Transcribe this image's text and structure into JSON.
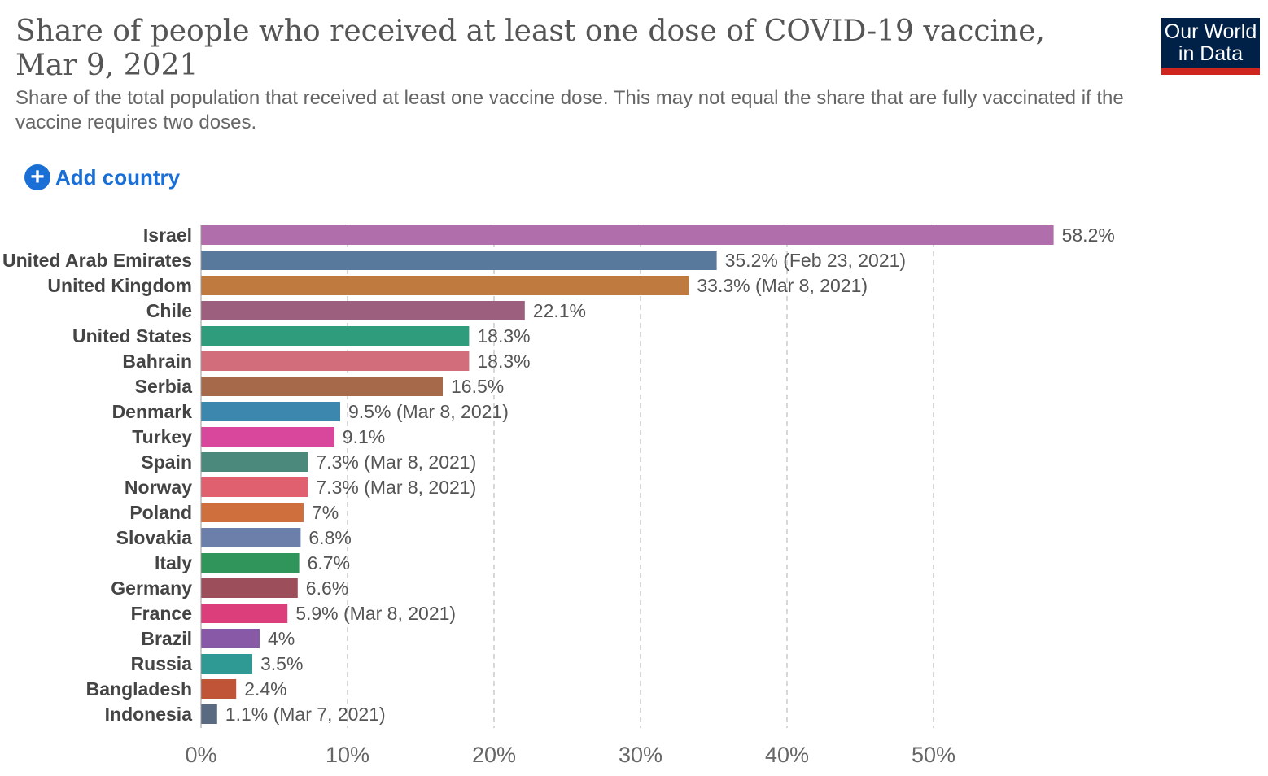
{
  "header": {
    "title": "Share of people who received at least one dose of COVID-19 vaccine, Mar 9, 2021",
    "subtitle": "Share of the total population that received at least one vaccine dose. This may not equal the share that are fully vaccinated if the vaccine requires two doses.",
    "logo_line1": "Our World",
    "logo_line2": "in Data",
    "add_country_label": "Add country"
  },
  "chart_data": {
    "type": "bar",
    "orientation": "horizontal",
    "title": "Share of people who received at least one dose of COVID-19 vaccine, Mar 9, 2021",
    "xlim": [
      0,
      60
    ],
    "xticks": [
      0,
      10,
      20,
      30,
      40,
      50
    ],
    "xtick_labels": [
      "0%",
      "10%",
      "20%",
      "30%",
      "40%",
      "50%"
    ],
    "grid": "vertical dashed",
    "categories": [
      "Israel",
      "United Arab Emirates",
      "United Kingdom",
      "Chile",
      "United States",
      "Bahrain",
      "Serbia",
      "Denmark",
      "Turkey",
      "Spain",
      "Norway",
      "Poland",
      "Slovakia",
      "Italy",
      "Germany",
      "France",
      "Brazil",
      "Russia",
      "Bangladesh",
      "Indonesia"
    ],
    "values": [
      58.2,
      35.2,
      33.3,
      22.1,
      18.3,
      18.3,
      16.5,
      9.5,
      9.1,
      7.3,
      7.3,
      7,
      6.8,
      6.7,
      6.6,
      5.9,
      4,
      3.5,
      2.4,
      1.1
    ],
    "value_labels": [
      "58.2%",
      "35.2% (Feb 23, 2021)",
      "33.3% (Mar 8, 2021)",
      "22.1%",
      "18.3%",
      "18.3%",
      "16.5%",
      "9.5% (Mar 8, 2021)",
      "9.1%",
      "7.3% (Mar 8, 2021)",
      "7.3% (Mar 8, 2021)",
      "7%",
      "6.8%",
      "6.7%",
      "6.6%",
      "5.9% (Mar 8, 2021)",
      "4%",
      "3.5%",
      "2.4%",
      "1.1% (Mar 7, 2021)"
    ],
    "colors": [
      "#b06eaa",
      "#58799b",
      "#bf7a3f",
      "#9c5f7d",
      "#2f9c7c",
      "#d26e7b",
      "#a66a4a",
      "#3b87ad",
      "#d8479b",
      "#4a897c",
      "#e06070",
      "#cf6f3d",
      "#6b7faa",
      "#2f955a",
      "#9c4f5b",
      "#db3e7a",
      "#8859a6",
      "#2e9a93",
      "#c05436",
      "#5a6a80"
    ]
  }
}
